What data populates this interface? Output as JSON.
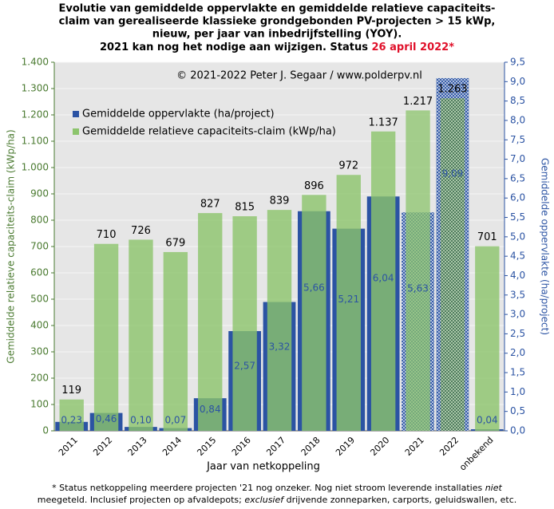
{
  "chart_data": {
    "type": "bar",
    "title": [
      "Evolutie van gemiddelde oppervlakte en gemiddelde relatieve capaciteits-",
      "claim van gerealiseerde klassieke grondgebonden PV-projecten > 15 kWp,",
      "nieuw, per jaar van inbedrijfstelling  (YOY).",
      "2021 kan nog het nodige aan wijzigen.  Status "
    ],
    "title_highlight": "26 april 2022*",
    "annotation": "© 2021-2022  Peter J. Segaar / www.polderpv.nl",
    "x_label": "Jaar van netkoppeling",
    "y_label": "Gemiddelde  relatieve capaciteits-claim (kWp/ha)",
    "y2_label": "Gemiddelde  oppervlakte  (ha/project)",
    "footnote": [
      "* Status netkoppeling meerdere projecten '21 nog onzeker. Nog niet stroom leverende installaties ",
      "niet",
      "meegeteld. Inclusief projecten op afvaldepots; ",
      "exclusief",
      " drijvende zonneparken, carports, geluidswallen, etc."
    ],
    "categories": [
      "2011",
      "2012",
      "2013",
      "2014",
      "2015",
      "2016",
      "2017",
      "2018",
      "2019",
      "2020",
      "2021",
      "2022",
      "onbekend"
    ],
    "hatched": [
      "2021",
      "2022"
    ],
    "series": [
      {
        "name": "Gemiddelde oppervlakte (ha/project)",
        "color": "#2b53a3",
        "axis": "y2",
        "values": [
          0.23,
          0.46,
          0.1,
          0.07,
          0.84,
          2.57,
          3.32,
          5.66,
          5.21,
          6.04,
          5.63,
          9.09,
          0.04
        ],
        "value_labels": [
          "0,23",
          "0,46",
          "0,10",
          "0,07",
          "0,84",
          "2,57",
          "3,32",
          "5,66",
          "5,21",
          "6,04",
          "5,63",
          "9,09",
          "0,04"
        ]
      },
      {
        "name": "Gemiddelde relatieve capaciteits-claim (kWp/ha)",
        "color": "#8cc46c",
        "values": [
          119,
          710,
          726,
          679,
          827,
          815,
          839,
          896,
          972,
          1137,
          1217,
          1263,
          701
        ],
        "value_labels": [
          "119",
          "710",
          "726",
          "679",
          "827",
          "815",
          "839",
          "896",
          "972",
          "1.137",
          "1.217",
          "1.263",
          "701"
        ]
      }
    ],
    "ylim": [
      0,
      1400
    ],
    "yticks": [
      0,
      100,
      200,
      300,
      400,
      500,
      600,
      700,
      800,
      900,
      {
        "value": 1000,
        "label": "1.000"
      },
      {
        "value": 1100,
        "label": "1.100"
      },
      {
        "value": 1200,
        "label": "1.200"
      },
      {
        "value": 1300,
        "label": "1.300"
      },
      {
        "value": 1400,
        "label": "1.400"
      }
    ],
    "y2lim": [
      0,
      9.5
    ],
    "y2ticks": [
      {
        "value": 0,
        "label": "0,0"
      },
      {
        "value": 0.5,
        "label": "0,5"
      },
      {
        "value": 1,
        "label": "1,0"
      },
      {
        "value": 1.5,
        "label": "1,5"
      },
      {
        "value": 2,
        "label": "2,0"
      },
      {
        "value": 2.5,
        "label": "2,5"
      },
      {
        "value": 3,
        "label": "3,0"
      },
      {
        "value": 3.5,
        "label": "3,5"
      },
      {
        "value": 4,
        "label": "4,0"
      },
      {
        "value": 4.5,
        "label": "4,5"
      },
      {
        "value": 5,
        "label": "5,0"
      },
      {
        "value": 5.5,
        "label": "5,5"
      },
      {
        "value": 6,
        "label": "6,0"
      },
      {
        "value": 6.5,
        "label": "6,5"
      },
      {
        "value": 7,
        "label": "7,0"
      },
      {
        "value": 7.5,
        "label": "7,5"
      },
      {
        "value": 8,
        "label": "8,0"
      },
      {
        "value": 8.5,
        "label": "8,5"
      },
      {
        "value": 9,
        "label": "9,0"
      },
      {
        "value": 9.5,
        "label": "9,5"
      }
    ],
    "grid": true
  }
}
